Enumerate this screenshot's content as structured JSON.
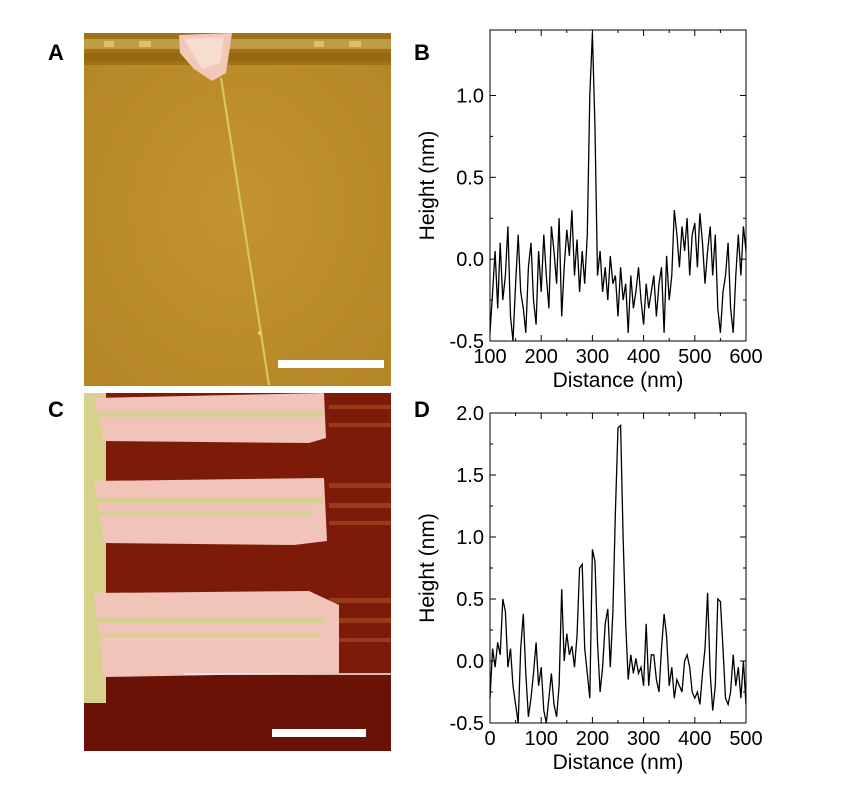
{
  "panels": {
    "a": {
      "label": "A"
    },
    "b": {
      "label": "B"
    },
    "c": {
      "label": "C"
    },
    "d": {
      "label": "D"
    }
  },
  "colors": {
    "afm_a_background": "#c09028",
    "afm_a_feature": "#f2c8b8",
    "afm_c_background": "#7a1808",
    "afm_c_feature": "#f0c4b8",
    "afm_c_edge": "#d8d890",
    "scale_bar": "#ffffff",
    "line": "#000000"
  },
  "chart_data": [
    {
      "type": "line",
      "panel": "B",
      "xlabel": "Distance (nm)",
      "ylabel": "Height (nm)",
      "xlim": [
        100,
        600
      ],
      "ylim": [
        -0.5,
        1.4
      ],
      "xticks": [
        100,
        200,
        300,
        400,
        500,
        600
      ],
      "xtick_labels": [
        "100",
        "200",
        "300",
        "400",
        "500",
        "600"
      ],
      "yticks": [
        -0.5,
        0.0,
        0.5,
        1.0
      ],
      "ytick_labels": [
        "-0.5",
        "0.0",
        "0.5",
        "1.0"
      ],
      "grid": false,
      "series": [
        {
          "x": [
            100,
            105,
            110,
            115,
            120,
            125,
            130,
            135,
            140,
            145,
            150,
            155,
            160,
            165,
            170,
            175,
            180,
            185,
            190,
            195,
            200,
            205,
            210,
            215,
            220,
            225,
            230,
            235,
            240,
            245,
            250,
            255,
            260,
            265,
            270,
            275,
            280,
            285,
            290,
            295,
            300,
            305,
            310,
            315,
            320,
            325,
            330,
            335,
            340,
            345,
            350,
            355,
            360,
            365,
            370,
            375,
            380,
            385,
            390,
            395,
            400,
            405,
            410,
            415,
            420,
            425,
            430,
            435,
            440,
            445,
            450,
            455,
            460,
            465,
            470,
            475,
            480,
            485,
            490,
            495,
            500,
            505,
            510,
            515,
            520,
            525,
            530,
            535,
            540,
            545,
            550,
            555,
            560,
            565,
            570,
            575,
            580,
            585,
            590,
            595,
            600
          ],
          "y": [
            -0.45,
            -0.2,
            0.05,
            -0.3,
            0.1,
            -0.25,
            -0.1,
            0.2,
            -0.35,
            -0.5,
            -0.15,
            0.15,
            -0.2,
            -0.3,
            -0.45,
            -0.05,
            0.1,
            -0.25,
            -0.4,
            0.05,
            -0.2,
            0.15,
            -0.1,
            -0.3,
            0.2,
            0.05,
            -0.15,
            0.25,
            -0.35,
            -0.05,
            0.18,
            0.02,
            0.3,
            -0.1,
            0.12,
            -0.2,
            0.05,
            -0.15,
            0.15,
            1.0,
            1.38,
            0.8,
            -0.1,
            0.05,
            -0.2,
            -0.05,
            -0.25,
            0.02,
            -0.15,
            -0.1,
            -0.35,
            -0.05,
            -0.25,
            -0.15,
            -0.45,
            -0.1,
            -0.3,
            -0.2,
            -0.05,
            -0.25,
            -0.4,
            -0.15,
            -0.3,
            -0.2,
            -0.1,
            -0.35,
            -0.15,
            -0.05,
            -0.45,
            0.02,
            -0.25,
            -0.1,
            0.3,
            0.15,
            -0.05,
            0.2,
            0.05,
            0.25,
            -0.1,
            0.15,
            0.22,
            -0.05,
            0.28,
            0.1,
            -0.15,
            0.05,
            0.2,
            -0.1,
            0.15,
            -0.3,
            -0.45,
            -0.2,
            -0.1,
            0.1,
            -0.3,
            -0.45,
            -0.1,
            0.15,
            -0.1,
            0.2,
            0.05
          ]
        }
      ]
    },
    {
      "type": "line",
      "panel": "D",
      "xlabel": "Distance (nm)",
      "ylabel": "Height (nm)",
      "xlim": [
        0,
        500
      ],
      "ylim": [
        -0.5,
        2.0
      ],
      "xticks": [
        0,
        100,
        200,
        300,
        400,
        500
      ],
      "xtick_labels": [
        "0",
        "100",
        "200",
        "300",
        "400",
        "500"
      ],
      "yticks": [
        -0.5,
        0.0,
        0.5,
        1.0,
        1.5,
        2.0
      ],
      "ytick_labels": [
        "-0.5",
        "0.0",
        "0.5",
        "1.0",
        "1.5",
        "2.0"
      ],
      "grid": false,
      "series": [
        {
          "x": [
            0,
            5,
            10,
            15,
            20,
            25,
            30,
            35,
            40,
            45,
            50,
            55,
            60,
            65,
            70,
            75,
            80,
            85,
            90,
            95,
            100,
            105,
            110,
            115,
            120,
            125,
            130,
            135,
            140,
            145,
            150,
            155,
            160,
            165,
            170,
            175,
            180,
            185,
            190,
            195,
            200,
            205,
            210,
            215,
            220,
            225,
            230,
            235,
            240,
            245,
            250,
            255,
            260,
            265,
            270,
            275,
            280,
            285,
            290,
            295,
            300,
            305,
            310,
            315,
            320,
            325,
            330,
            335,
            340,
            345,
            350,
            355,
            360,
            365,
            370,
            375,
            380,
            385,
            390,
            395,
            400,
            405,
            410,
            415,
            420,
            425,
            430,
            435,
            440,
            445,
            450,
            455,
            460,
            465,
            470,
            475,
            480,
            485,
            490,
            495,
            500
          ],
          "y": [
            -0.3,
            0.1,
            -0.05,
            0.15,
            0.05,
            0.5,
            0.4,
            -0.05,
            0.1,
            -0.2,
            -0.35,
            -0.5,
            0.1,
            0.38,
            -0.1,
            -0.45,
            -0.3,
            -0.1,
            0.15,
            -0.2,
            -0.05,
            -0.4,
            -0.5,
            -0.3,
            -0.1,
            -0.35,
            -0.45,
            -0.2,
            0.58,
            0.0,
            0.22,
            0.05,
            0.12,
            -0.05,
            0.2,
            0.75,
            0.78,
            0.1,
            -0.1,
            -0.3,
            0.9,
            0.8,
            0.15,
            -0.25,
            -0.05,
            0.3,
            0.42,
            -0.05,
            0.4,
            1.2,
            1.88,
            1.9,
            1.0,
            0.3,
            -0.15,
            0.05,
            -0.1,
            0.02,
            -0.1,
            -0.05,
            -0.2,
            0.3,
            -0.2,
            0.05,
            0.05,
            -0.15,
            -0.25,
            0.1,
            0.38,
            0.2,
            -0.2,
            -0.05,
            -0.3,
            -0.15,
            -0.2,
            -0.25,
            0.0,
            0.05,
            -0.05,
            -0.25,
            -0.3,
            -0.25,
            -0.35,
            -0.1,
            0.1,
            0.55,
            -0.1,
            -0.4,
            -0.2,
            0.5,
            0.48,
            0.1,
            -0.3,
            -0.35,
            -0.25,
            0.05,
            -0.2,
            -0.05,
            -0.3,
            0.0,
            -0.35
          ]
        }
      ]
    }
  ]
}
